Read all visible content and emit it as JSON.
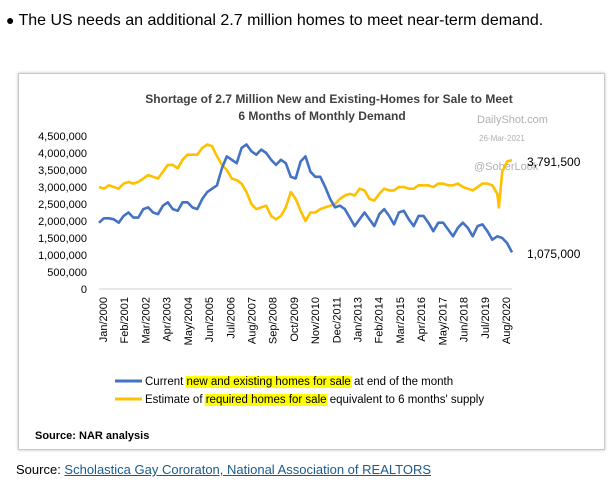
{
  "headline": "The US needs an additional 2.7 million homes to meet near-term demand.",
  "source_prefix": "Source: ",
  "source_link": "Scholastica Gay Cororaton, National Association of REALTORS",
  "chart_data": {
    "type": "line",
    "title_line1": "Shortage of 2.7 Million New and Existing-Homes for Sale to Meet",
    "title_line2": "6 Months of Monthly Demand",
    "watermark": [
      "DailyShot.com",
      "26-Mar-2021",
      "@SoberLook"
    ],
    "ylim": [
      0,
      4500000
    ],
    "y_ticks": [
      "4,500,000",
      "4,000,000",
      "3,500,000",
      "3,000,000",
      "2,500,000",
      "2,000,000",
      "1,500,000",
      "1,000,000",
      "500,000",
      "0"
    ],
    "x_tick_labels": [
      "Jan/2000",
      "Feb/2001",
      "Mar/2002",
      "Apr/2003",
      "May/2004",
      "Jun/2005",
      "Jul/2006",
      "Aug/2007",
      "Sep/2008",
      "Oct/2009",
      "Nov/2010",
      "Dec/2011",
      "Jan/2013",
      "Feb/2014",
      "Mar/2015",
      "Apr/2016",
      "May/2017",
      "Jun/2018",
      "Jul/2019",
      "Aug/2020"
    ],
    "x_range": [
      "2000-01",
      "2021-01"
    ],
    "end_labels": {
      "required": "3,791,500",
      "current": "1,075,000"
    },
    "legend": [
      {
        "pre": "Current ",
        "hl": "new and existing homes for sale",
        "post": " at end of the month",
        "color": "#4472c4"
      },
      {
        "pre": "Estimate of ",
        "hl": "required homes for sale",
        "post": " equivalent to 6 months' supply",
        "color": "#ffc000"
      }
    ],
    "highlight_color": "#ffff00",
    "source_note": "Source: NAR analysis",
    "series": [
      {
        "key": "current",
        "color": "#4472c4",
        "points": [
          [
            "2000-01",
            1950000
          ],
          [
            "2000-04",
            2080000
          ],
          [
            "2000-07",
            2080000
          ],
          [
            "2000-10",
            2050000
          ],
          [
            "2001-01",
            1950000
          ],
          [
            "2001-04",
            2150000
          ],
          [
            "2001-07",
            2250000
          ],
          [
            "2001-10",
            2100000
          ],
          [
            "2002-01",
            2100000
          ],
          [
            "2002-04",
            2350000
          ],
          [
            "2002-07",
            2400000
          ],
          [
            "2002-10",
            2250000
          ],
          [
            "2003-01",
            2200000
          ],
          [
            "2003-04",
            2450000
          ],
          [
            "2003-07",
            2550000
          ],
          [
            "2003-10",
            2350000
          ],
          [
            "2004-01",
            2300000
          ],
          [
            "2004-04",
            2550000
          ],
          [
            "2004-07",
            2550000
          ],
          [
            "2004-10",
            2400000
          ],
          [
            "2005-01",
            2350000
          ],
          [
            "2005-04",
            2650000
          ],
          [
            "2005-07",
            2850000
          ],
          [
            "2005-10",
            2950000
          ],
          [
            "2006-01",
            3050000
          ],
          [
            "2006-04",
            3550000
          ],
          [
            "2006-07",
            3900000
          ],
          [
            "2006-10",
            3800000
          ],
          [
            "2007-01",
            3700000
          ],
          [
            "2007-04",
            4150000
          ],
          [
            "2007-07",
            4250000
          ],
          [
            "2007-10",
            4050000
          ],
          [
            "2008-01",
            3950000
          ],
          [
            "2008-04",
            4100000
          ],
          [
            "2008-07",
            4000000
          ],
          [
            "2008-10",
            3800000
          ],
          [
            "2009-01",
            3650000
          ],
          [
            "2009-04",
            3800000
          ],
          [
            "2009-07",
            3700000
          ],
          [
            "2009-10",
            3300000
          ],
          [
            "2010-01",
            3250000
          ],
          [
            "2010-04",
            3750000
          ],
          [
            "2010-07",
            3900000
          ],
          [
            "2010-10",
            3450000
          ],
          [
            "2011-01",
            3300000
          ],
          [
            "2011-04",
            3300000
          ],
          [
            "2011-07",
            3000000
          ],
          [
            "2011-10",
            2650000
          ],
          [
            "2012-01",
            2400000
          ],
          [
            "2012-04",
            2450000
          ],
          [
            "2012-07",
            2350000
          ],
          [
            "2012-10",
            2100000
          ],
          [
            "2013-01",
            1850000
          ],
          [
            "2013-04",
            2050000
          ],
          [
            "2013-07",
            2250000
          ],
          [
            "2013-10",
            2050000
          ],
          [
            "2014-01",
            1850000
          ],
          [
            "2014-04",
            2200000
          ],
          [
            "2014-07",
            2350000
          ],
          [
            "2014-10",
            2150000
          ],
          [
            "2015-01",
            1900000
          ],
          [
            "2015-04",
            2250000
          ],
          [
            "2015-07",
            2300000
          ],
          [
            "2015-10",
            2050000
          ],
          [
            "2016-01",
            1850000
          ],
          [
            "2016-04",
            2150000
          ],
          [
            "2016-07",
            2150000
          ],
          [
            "2016-10",
            1950000
          ],
          [
            "2017-01",
            1700000
          ],
          [
            "2017-04",
            1950000
          ],
          [
            "2017-07",
            1950000
          ],
          [
            "2017-10",
            1750000
          ],
          [
            "2018-01",
            1550000
          ],
          [
            "2018-04",
            1800000
          ],
          [
            "2018-07",
            1950000
          ],
          [
            "2018-10",
            1800000
          ],
          [
            "2019-01",
            1550000
          ],
          [
            "2019-04",
            1850000
          ],
          [
            "2019-07",
            1900000
          ],
          [
            "2019-10",
            1700000
          ],
          [
            "2020-01",
            1450000
          ],
          [
            "2020-04",
            1550000
          ],
          [
            "2020-07",
            1500000
          ],
          [
            "2020-10",
            1350000
          ],
          [
            "2021-01",
            1075000
          ]
        ]
      },
      {
        "key": "required",
        "color": "#ffc000",
        "points": [
          [
            "2000-01",
            3000000
          ],
          [
            "2000-04",
            2950000
          ],
          [
            "2000-07",
            3050000
          ],
          [
            "2000-10",
            3000000
          ],
          [
            "2001-01",
            2950000
          ],
          [
            "2001-04",
            3100000
          ],
          [
            "2001-07",
            3150000
          ],
          [
            "2001-10",
            3100000
          ],
          [
            "2002-01",
            3150000
          ],
          [
            "2002-04",
            3250000
          ],
          [
            "2002-07",
            3350000
          ],
          [
            "2002-10",
            3300000
          ],
          [
            "2003-01",
            3250000
          ],
          [
            "2003-04",
            3450000
          ],
          [
            "2003-07",
            3650000
          ],
          [
            "2003-10",
            3650000
          ],
          [
            "2004-01",
            3550000
          ],
          [
            "2004-04",
            3800000
          ],
          [
            "2004-07",
            3950000
          ],
          [
            "2004-10",
            3950000
          ],
          [
            "2005-01",
            3950000
          ],
          [
            "2005-04",
            4150000
          ],
          [
            "2005-07",
            4250000
          ],
          [
            "2005-10",
            4200000
          ],
          [
            "2006-01",
            3900000
          ],
          [
            "2006-04",
            3650000
          ],
          [
            "2006-07",
            3500000
          ],
          [
            "2006-10",
            3250000
          ],
          [
            "2007-01",
            3200000
          ],
          [
            "2007-04",
            3100000
          ],
          [
            "2007-07",
            2850000
          ],
          [
            "2007-10",
            2500000
          ],
          [
            "2008-01",
            2350000
          ],
          [
            "2008-04",
            2400000
          ],
          [
            "2008-07",
            2450000
          ],
          [
            "2008-10",
            2150000
          ],
          [
            "2009-01",
            2050000
          ],
          [
            "2009-04",
            2150000
          ],
          [
            "2009-07",
            2400000
          ],
          [
            "2009-10",
            2850000
          ],
          [
            "2010-01",
            2650000
          ],
          [
            "2010-04",
            2300000
          ],
          [
            "2010-07",
            2000000
          ],
          [
            "2010-10",
            2250000
          ],
          [
            "2011-01",
            2250000
          ],
          [
            "2011-04",
            2350000
          ],
          [
            "2011-07",
            2400000
          ],
          [
            "2011-10",
            2450000
          ],
          [
            "2012-01",
            2500000
          ],
          [
            "2012-04",
            2650000
          ],
          [
            "2012-07",
            2750000
          ],
          [
            "2012-10",
            2800000
          ],
          [
            "2013-01",
            2750000
          ],
          [
            "2013-04",
            2950000
          ],
          [
            "2013-07",
            2900000
          ],
          [
            "2013-10",
            2650000
          ],
          [
            "2014-01",
            2600000
          ],
          [
            "2014-04",
            2800000
          ],
          [
            "2014-07",
            2950000
          ],
          [
            "2014-10",
            2900000
          ],
          [
            "2015-01",
            2900000
          ],
          [
            "2015-04",
            3000000
          ],
          [
            "2015-07",
            3000000
          ],
          [
            "2015-10",
            2950000
          ],
          [
            "2016-01",
            2950000
          ],
          [
            "2016-04",
            3050000
          ],
          [
            "2016-07",
            3050000
          ],
          [
            "2016-10",
            3050000
          ],
          [
            "2017-01",
            3000000
          ],
          [
            "2017-04",
            3100000
          ],
          [
            "2017-07",
            3100000
          ],
          [
            "2017-10",
            3050000
          ],
          [
            "2018-01",
            3050000
          ],
          [
            "2018-04",
            3100000
          ],
          [
            "2018-07",
            3000000
          ],
          [
            "2018-10",
            2950000
          ],
          [
            "2019-01",
            2900000
          ],
          [
            "2019-04",
            3000000
          ],
          [
            "2019-07",
            3100000
          ],
          [
            "2019-10",
            3100000
          ],
          [
            "2020-01",
            3050000
          ],
          [
            "2020-04",
            2800000
          ],
          [
            "2020-05",
            2400000
          ],
          [
            "2020-07",
            3450000
          ],
          [
            "2020-10",
            3750000
          ],
          [
            "2021-01",
            3791500
          ]
        ]
      }
    ]
  }
}
